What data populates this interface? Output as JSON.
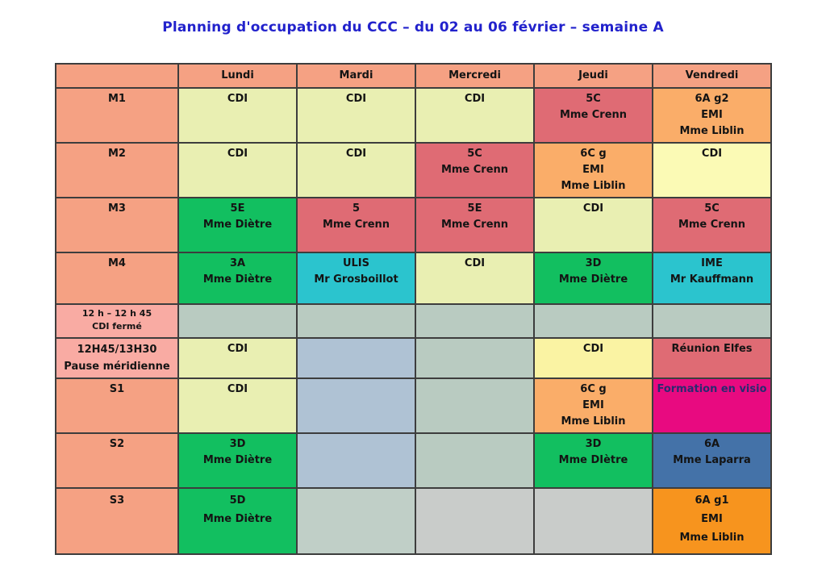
{
  "title": "Planning d'occupation du CCC – du 02 au 06 février – semaine A",
  "colors": {
    "titleBlue": "#2222CC",
    "headerSalmon": "#F5A183",
    "middayPink": "#F9ABA3",
    "cdiGreen": "#E9EFB2",
    "cdiYellowLight": "#FBFAB5",
    "cdiYellow": "#FAF3A3",
    "rose": "#DF6B74",
    "orangeLight": "#FAAD69",
    "orange": "#F7941E",
    "green": "#12BF60",
    "cyan": "#2BC4CE",
    "grayGreen": "#B9CBC1",
    "grayGreen2": "#C0CFC7",
    "blueGray": "#AFC2D4",
    "gray": "#C9CCCA",
    "magenta": "#E80A80",
    "steelBlue": "#4472A8",
    "navy": "#2A2A70",
    "black": "#141414"
  },
  "table": {
    "columns": [
      "",
      "Lundi",
      "Mardi",
      "Mercredi",
      "Jeudi",
      "Vendredi"
    ],
    "rows": [
      {
        "label": [
          "M1"
        ],
        "label_color": "headerSalmon",
        "cells": [
          {
            "lines": [
              "CDI"
            ],
            "color": "cdiGreen"
          },
          {
            "lines": [
              "CDI"
            ],
            "color": "cdiGreen"
          },
          {
            "lines": [
              "CDI"
            ],
            "color": "cdiGreen"
          },
          {
            "lines": [
              "5C",
              "Mme Crenn"
            ],
            "color": "rose"
          },
          {
            "lines": [
              "6A g2",
              "EMI",
              "Mme Liblin"
            ],
            "color": "orangeLight"
          }
        ]
      },
      {
        "label": [
          "M2"
        ],
        "label_color": "headerSalmon",
        "cells": [
          {
            "lines": [
              "CDI"
            ],
            "color": "cdiGreen"
          },
          {
            "lines": [
              "CDI"
            ],
            "color": "cdiGreen"
          },
          {
            "lines": [
              "5C",
              "Mme Crenn"
            ],
            "color": "rose"
          },
          {
            "lines": [
              "6C g",
              "EMI",
              "Mme Liblin"
            ],
            "color": "orangeLight"
          },
          {
            "lines": [
              "CDI"
            ],
            "color": "cdiYellowLight"
          }
        ]
      },
      {
        "label": [
          "M3"
        ],
        "label_color": "headerSalmon",
        "cells": [
          {
            "lines": [
              "5E",
              "Mme Diètre"
            ],
            "color": "green"
          },
          {
            "lines": [
              "5",
              "Mme Crenn"
            ],
            "color": "rose"
          },
          {
            "lines": [
              "5E",
              "Mme Crenn"
            ],
            "color": "rose"
          },
          {
            "lines": [
              "CDI"
            ],
            "color": "cdiGreen"
          },
          {
            "lines": [
              "5C",
              "Mme Crenn"
            ],
            "color": "rose"
          }
        ]
      },
      {
        "label": [
          "M4"
        ],
        "label_color": "headerSalmon",
        "cells": [
          {
            "lines": [
              "3A",
              "Mme Diètre"
            ],
            "color": "green"
          },
          {
            "lines": [
              "ULIS",
              "Mr Grosboillot"
            ],
            "color": "cyan"
          },
          {
            "lines": [
              "CDI"
            ],
            "color": "cdiGreen"
          },
          {
            "lines": [
              "3D",
              "Mme Diètre"
            ],
            "color": "green"
          },
          {
            "lines": [
              "IME",
              "Mr Kauffmann"
            ],
            "color": "cyan"
          }
        ]
      },
      {
        "label": [
          "12 h – 12 h 45",
          "CDI fermé"
        ],
        "label_color": "middayPink",
        "cells": [
          {
            "lines": [],
            "color": "grayGreen"
          },
          {
            "lines": [],
            "color": "grayGreen"
          },
          {
            "lines": [],
            "color": "grayGreen"
          },
          {
            "lines": [],
            "color": "grayGreen"
          },
          {
            "lines": [],
            "color": "grayGreen"
          }
        ]
      },
      {
        "label": [
          "12H45/13H30",
          "Pause méridienne"
        ],
        "label_color": "middayPink",
        "cells": [
          {
            "lines": [
              "CDI"
            ],
            "color": "cdiGreen"
          },
          {
            "lines": [],
            "color": "blueGray"
          },
          {
            "lines": [],
            "color": "grayGreen"
          },
          {
            "lines": [
              "CDI"
            ],
            "color": "cdiYellow"
          },
          {
            "lines": [
              "Réunion Elfes"
            ],
            "color": "rose"
          }
        ]
      },
      {
        "label": [
          "S1"
        ],
        "label_color": "headerSalmon",
        "cells": [
          {
            "lines": [
              "CDI"
            ],
            "color": "cdiGreen"
          },
          {
            "lines": [],
            "color": "blueGray"
          },
          {
            "lines": [],
            "color": "grayGreen"
          },
          {
            "lines": [
              "6C g",
              "EMI",
              "Mme Liblin"
            ],
            "color": "orangeLight"
          },
          {
            "lines": [
              "Formation en visio"
            ],
            "color": "magenta",
            "text_color": "navy"
          }
        ]
      },
      {
        "label": [
          "S2"
        ],
        "label_color": "headerSalmon",
        "cells": [
          {
            "lines": [
              "3D",
              "Mme Diètre"
            ],
            "color": "green"
          },
          {
            "lines": [],
            "color": "blueGray"
          },
          {
            "lines": [],
            "color": "grayGreen"
          },
          {
            "lines": [
              "3D",
              "Mme DIètre"
            ],
            "color": "green"
          },
          {
            "lines": [
              "6A",
              "Mme Laparra"
            ],
            "color": "steelBlue"
          }
        ]
      },
      {
        "label": [
          "S3"
        ],
        "label_color": "headerSalmon",
        "cells": [
          {
            "lines": [
              "5D",
              "Mme Diètre"
            ],
            "color": "green"
          },
          {
            "lines": [],
            "color": "grayGreen2"
          },
          {
            "lines": [],
            "color": "gray"
          },
          {
            "lines": [],
            "color": "gray"
          },
          {
            "lines": [
              "6A g1",
              "EMI",
              "Mme Liblin"
            ],
            "color": "orange"
          }
        ]
      }
    ]
  }
}
